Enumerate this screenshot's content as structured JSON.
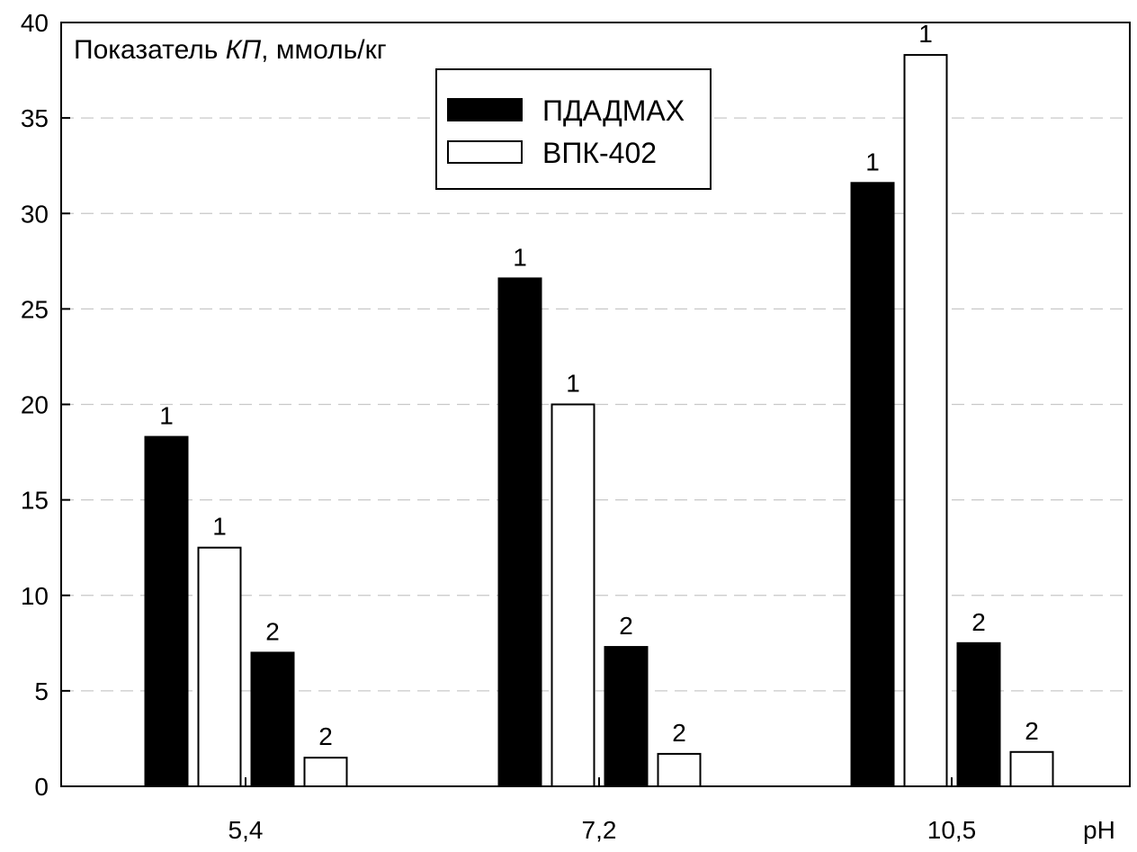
{
  "chart_data": {
    "type": "bar",
    "categories": [
      "5,4",
      "7,2",
      "10,5"
    ],
    "ylim": [
      0,
      40
    ],
    "yticks": [
      0,
      5,
      10,
      15,
      20,
      25,
      30,
      35,
      40
    ],
    "ylabel_plain": "Показатель ",
    "ylabel_italic": "КП",
    "ylabel_rest": ", ммоль/кг",
    "xlabel": "pH",
    "grid": true,
    "legend_position": "top-center",
    "groups": [
      {
        "category": "5,4",
        "bars": [
          {
            "series": "ПДАДМАХ",
            "value": 18.3,
            "label": "1"
          },
          {
            "series": "ВПК-402",
            "value": 12.5,
            "label": "1"
          },
          {
            "series": "ПДАДМАХ",
            "value": 7.0,
            "label": "2"
          },
          {
            "series": "ВПК-402",
            "value": 1.5,
            "label": "2"
          }
        ]
      },
      {
        "category": "7,2",
        "bars": [
          {
            "series": "ПДАДМАХ",
            "value": 26.6,
            "label": "1"
          },
          {
            "series": "ВПК-402",
            "value": 20.0,
            "label": "1"
          },
          {
            "series": "ПДАДМАХ",
            "value": 7.3,
            "label": "2"
          },
          {
            "series": "ВПК-402",
            "value": 1.7,
            "label": "2"
          }
        ]
      },
      {
        "category": "10,5",
        "bars": [
          {
            "series": "ПДАДМАХ",
            "value": 31.6,
            "label": "1"
          },
          {
            "series": "ВПК-402",
            "value": 38.3,
            "label": "1"
          },
          {
            "series": "ПДАДМАХ",
            "value": 7.5,
            "label": "2"
          },
          {
            "series": "ВПК-402",
            "value": 1.8,
            "label": "2"
          }
        ]
      }
    ],
    "series": [
      {
        "name": "ПДАДМАХ",
        "color": "#000000"
      },
      {
        "name": "ВПК-402",
        "color": "#ffffff"
      }
    ]
  }
}
